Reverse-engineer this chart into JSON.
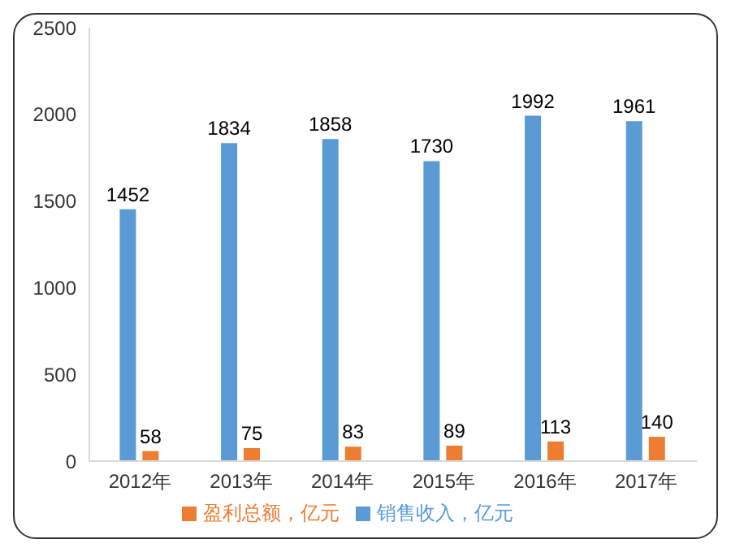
{
  "chart_data": {
    "type": "bar",
    "categories": [
      "2012年",
      "2013年",
      "2014年",
      "2015年",
      "2016年",
      "2017年"
    ],
    "series": [
      {
        "name": "销售收入，亿元",
        "color": "#5b9bd5",
        "values": [
          1452,
          1834,
          1858,
          1730,
          1992,
          1961
        ]
      },
      {
        "name": "盈利总额，亿元",
        "color": "#ed7d31",
        "values": [
          58,
          75,
          83,
          89,
          113,
          140
        ]
      }
    ],
    "ylim": [
      0,
      2500
    ],
    "yticks": [
      0,
      500,
      1000,
      1500,
      2000,
      2500
    ],
    "grid": false,
    "legend": "bottom",
    "data_labels": true
  }
}
